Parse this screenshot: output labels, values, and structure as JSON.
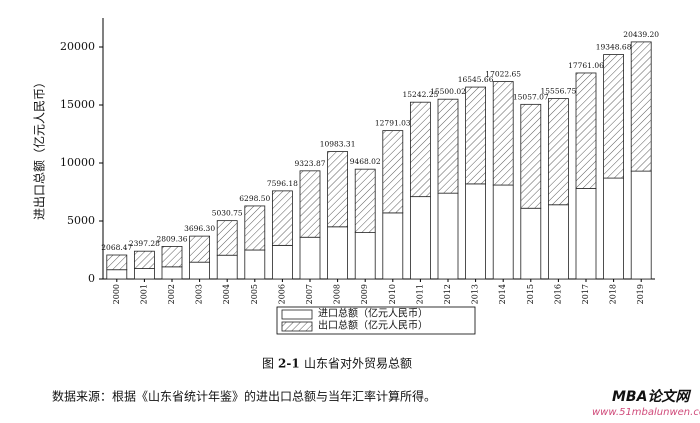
{
  "chart_data": {
    "type": "stacked_bar",
    "ylabel": "进出口总额（亿元人民币）",
    "categories": [
      "2000",
      "2001",
      "2002",
      "2003",
      "2004",
      "2005",
      "2006",
      "2007",
      "2008",
      "2009",
      "2010",
      "2011",
      "2012",
      "2013",
      "2014",
      "2015",
      "2016",
      "2017",
      "2018",
      "2019"
    ],
    "series": [
      {
        "name": "进口总额（亿元人民币）",
        "color": "#ffffff",
        "pattern": "none",
        "values": [
          800,
          900,
          1050,
          1450,
          2050,
          2500,
          2900,
          3600,
          4500,
          4000,
          5700,
          7100,
          7400,
          8200,
          8100,
          6100,
          6400,
          7800,
          8700,
          9300
        ]
      },
      {
        "name": "出口总额（亿元人民币）",
        "color": "#ffffff",
        "pattern": "diagonal",
        "values": [
          1268.47,
          1497.28,
          1759.36,
          2246.3,
          2980.75,
          3798.5,
          4696.18,
          5723.87,
          6483.31,
          5468.02,
          7091.03,
          8142.25,
          8100.02,
          8345.66,
          8922.65,
          8957.07,
          9156.75,
          9961.06,
          10648.68,
          11139.2
        ]
      }
    ],
    "total_labels": [
      "2068.47",
      "2397.28",
      "2809.36",
      "3696.30",
      "5030.75",
      "6298.50",
      "7596.18",
      "9323.87",
      "10983.31",
      "9468.02",
      "12791.03",
      "15242.25",
      "15500.02",
      "16545.66",
      "17022.65",
      "15057.07",
      "15556.75",
      "17761.06",
      "19348.68",
      "20439.20"
    ],
    "ylim": [
      0,
      22500
    ],
    "yticks": [
      0,
      5000,
      10000,
      15000,
      20000
    ]
  },
  "caption": {
    "prefix": "图",
    "number": "2-1",
    "text": "山东省对外贸易总额"
  },
  "source": "数据来源：根据《山东省统计年鉴》的进出口总额与当年汇率计算所得。",
  "watermark": {
    "title": "MBA论文网",
    "url": "www.51mbalunwen.com"
  }
}
